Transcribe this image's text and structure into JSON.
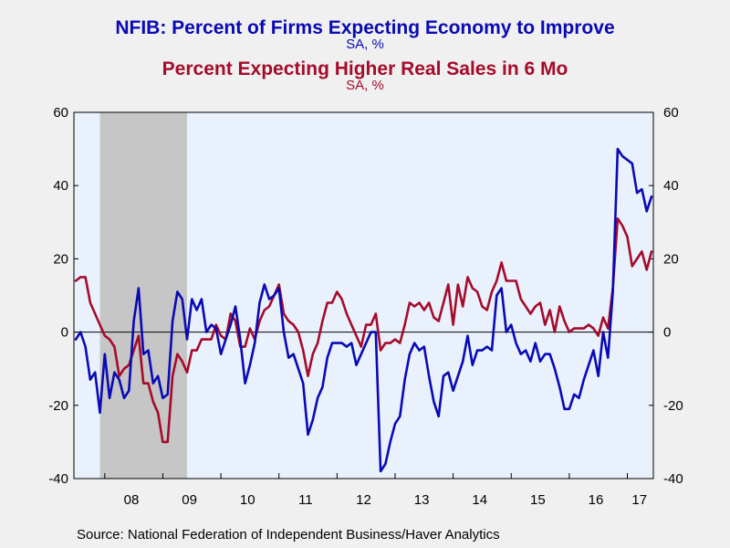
{
  "titles": {
    "series1_title": "NFIB: Percent of Firms Expecting Economy to Improve",
    "series1_unit": "SA, %",
    "series2_title": "Percent Expecting Higher Real Sales in 6 Mo",
    "series2_unit": "SA, %"
  },
  "source": "Source:  National Federation of Independent Business/Haver Analytics",
  "colors": {
    "series1": "#0a0ab4",
    "series2": "#a50b2a",
    "plot_bg": "#e8f1fc",
    "recession": "#c6c6c6",
    "page_bg": "#f0f0f0"
  },
  "chart_data": {
    "type": "line",
    "x_unit": "monthly, Jul 2007 - Jan 2017",
    "x_start": "2007-07",
    "x_ticks": [
      "08",
      "09",
      "10",
      "11",
      "12",
      "13",
      "14",
      "15",
      "16",
      "17"
    ],
    "ylim": [
      -40,
      60
    ],
    "y_ticks": [
      -40,
      -20,
      0,
      20,
      40,
      60
    ],
    "y_axis_both_sides": true,
    "zero_line": true,
    "recession": {
      "start": "2007-12",
      "end": "2009-06"
    },
    "series": [
      {
        "name": "NFIB: Percent of Firms Expecting Economy to Improve",
        "values": [
          -2,
          0,
          -4,
          -13,
          -11,
          -22,
          -6,
          -18,
          -11,
          -13,
          -18,
          -16,
          3,
          12,
          -6,
          -5,
          -14,
          -12,
          -18,
          -17,
          3,
          11,
          9,
          -2,
          9,
          6,
          9,
          0,
          2,
          1,
          -6,
          -2,
          2,
          7,
          -2,
          -14,
          -9,
          -3,
          8,
          13,
          9,
          10,
          12,
          0,
          -7,
          -6,
          -10,
          -14,
          -28,
          -24,
          -18,
          -15,
          -7,
          -3,
          -3,
          -3,
          -4,
          -3,
          -9,
          -6,
          -3,
          0,
          0,
          -38,
          -36,
          -30,
          -25,
          -23,
          -13,
          -6,
          -3,
          -5,
          -4,
          -12,
          -19,
          -23,
          -12,
          -11,
          -16,
          -12,
          -8,
          -1,
          -9,
          -5,
          -5,
          -4,
          -5,
          10,
          12,
          0,
          2,
          -3,
          -6,
          -5,
          -8,
          -3,
          -8,
          -6,
          -6,
          -10,
          -15,
          -21,
          -21,
          -17,
          -18,
          -13,
          -9,
          -5,
          -12,
          0,
          -7,
          11,
          50,
          48,
          47,
          46,
          38,
          39,
          33,
          37
        ],
        "color": "#0a0ab4"
      },
      {
        "name": "Percent Expecting Higher Real Sales in 6 Mo",
        "values": [
          14,
          15,
          15,
          8,
          5,
          2,
          -1,
          -2,
          -4,
          -12,
          -10,
          -9,
          -5,
          -1,
          -14,
          -14,
          -19,
          -22,
          -30,
          -30,
          -12,
          -6,
          -8,
          -11,
          -5,
          -5,
          -2,
          -2,
          -2,
          2,
          -1,
          -2,
          5,
          3,
          -4,
          -4,
          1,
          -2,
          3,
          6,
          7,
          10,
          13,
          5,
          3,
          2,
          0,
          -5,
          -12,
          -6,
          -3,
          3,
          8,
          8,
          11,
          9,
          5,
          2,
          -1,
          -4,
          2,
          2,
          5,
          -5,
          -3,
          -3,
          -2,
          -3,
          2,
          8,
          7,
          8,
          6,
          8,
          4,
          3,
          8,
          13,
          2,
          13,
          7,
          15,
          12,
          11,
          7,
          6,
          11,
          14,
          19,
          14,
          14,
          14,
          9,
          7,
          5,
          7,
          8,
          2,
          6,
          0,
          7,
          3,
          0,
          1,
          1,
          1,
          2,
          1,
          -1,
          4,
          1,
          12,
          31,
          29,
          26,
          18,
          20,
          22,
          17,
          22
        ],
        "color": "#a50b2a"
      }
    ]
  }
}
